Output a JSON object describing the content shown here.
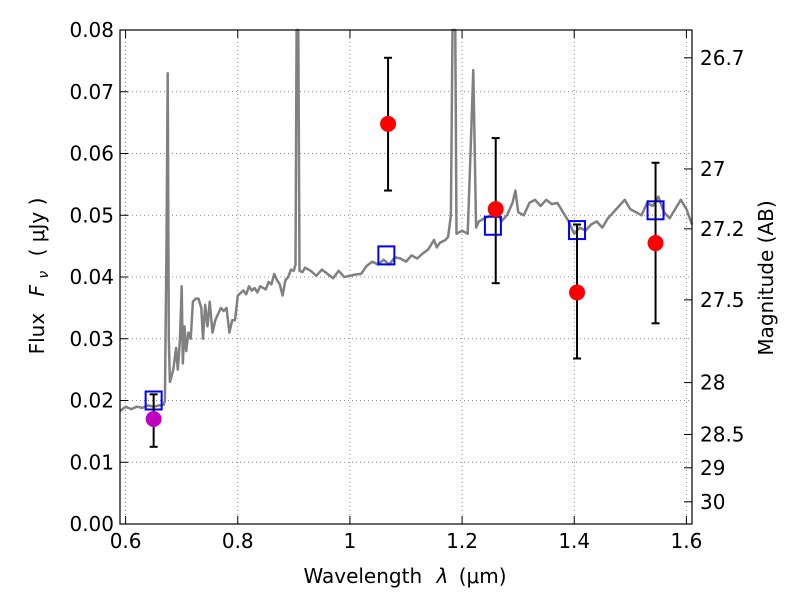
{
  "chart_data": {
    "type": "scatter",
    "title": "",
    "xlabel_text": "Wavelength",
    "xlabel_symbol": "λ",
    "xlabel_unit": "(μm)",
    "ylabel_text": "Flux",
    "ylabel_symbol": "F",
    "ylabel_sub": "ν",
    "ylabel_unit": "( μJy )",
    "y2label": "Magnitude (AB)",
    "xlim": [
      0.59,
      1.61
    ],
    "ylim": [
      0.0,
      0.08
    ],
    "grid": true,
    "x_ticks": [
      0.6,
      0.8,
      1.0,
      1.2,
      1.4,
      1.6
    ],
    "x_tick_labels": [
      "0.6",
      "0.8",
      "1",
      "1.2",
      "1.4",
      "1.6"
    ],
    "y_ticks": [
      0.0,
      0.01,
      0.02,
      0.03,
      0.04,
      0.05,
      0.06,
      0.07,
      0.08
    ],
    "y_tick_labels": [
      "0.00",
      "0.01",
      "0.02",
      "0.03",
      "0.04",
      "0.05",
      "0.06",
      "0.07",
      "0.08"
    ],
    "y2_ticks": [
      {
        "label": "26.7",
        "flux": 0.0755
      },
      {
        "label": "27",
        "flux": 0.0575
      },
      {
        "label": "27.2",
        "flux": 0.0478
      },
      {
        "label": "27.5",
        "flux": 0.0363
      },
      {
        "label": "28",
        "flux": 0.0229
      },
      {
        "label": "28.5",
        "flux": 0.0145
      },
      {
        "label": "29",
        "flux": 0.0091
      },
      {
        "label": "30",
        "flux": 0.0036
      }
    ],
    "series": [
      {
        "kind": "template_spectrum",
        "color": "#808080",
        "points": [
          [
            0.59,
            0.0183
          ],
          [
            0.6,
            0.019
          ],
          [
            0.61,
            0.0186
          ],
          [
            0.62,
            0.019
          ],
          [
            0.63,
            0.0188
          ],
          [
            0.64,
            0.0192
          ],
          [
            0.65,
            0.019
          ],
          [
            0.66,
            0.0192
          ],
          [
            0.668,
            0.0193
          ],
          [
            0.67,
            0.02
          ],
          [
            0.673,
            0.045
          ],
          [
            0.675,
            0.073
          ],
          [
            0.677,
            0.03
          ],
          [
            0.679,
            0.023
          ],
          [
            0.685,
            0.025
          ],
          [
            0.69,
            0.0285
          ],
          [
            0.693,
            0.025
          ],
          [
            0.697,
            0.03
          ],
          [
            0.7,
            0.0385
          ],
          [
            0.702,
            0.026
          ],
          [
            0.705,
            0.032
          ],
          [
            0.708,
            0.028
          ],
          [
            0.712,
            0.031
          ],
          [
            0.716,
            0.03
          ],
          [
            0.72,
            0.036
          ],
          [
            0.725,
            0.0365
          ],
          [
            0.73,
            0.0365
          ],
          [
            0.735,
            0.035
          ],
          [
            0.738,
            0.03
          ],
          [
            0.742,
            0.0355
          ],
          [
            0.746,
            0.032
          ],
          [
            0.75,
            0.036
          ],
          [
            0.755,
            0.031
          ],
          [
            0.76,
            0.033
          ],
          [
            0.765,
            0.034
          ],
          [
            0.77,
            0.035
          ],
          [
            0.775,
            0.0345
          ],
          [
            0.78,
            0.035
          ],
          [
            0.785,
            0.031
          ],
          [
            0.79,
            0.033
          ],
          [
            0.795,
            0.033
          ],
          [
            0.8,
            0.037
          ],
          [
            0.81,
            0.0378
          ],
          [
            0.815,
            0.0372
          ],
          [
            0.82,
            0.0385
          ],
          [
            0.825,
            0.0378
          ],
          [
            0.83,
            0.0382
          ],
          [
            0.835,
            0.0375
          ],
          [
            0.84,
            0.0385
          ],
          [
            0.85,
            0.038
          ],
          [
            0.855,
            0.0392
          ],
          [
            0.86,
            0.0388
          ],
          [
            0.865,
            0.0405
          ],
          [
            0.87,
            0.0395
          ],
          [
            0.875,
            0.0388
          ],
          [
            0.88,
            0.037
          ],
          [
            0.885,
            0.0395
          ],
          [
            0.89,
            0.04
          ],
          [
            0.895,
            0.0412
          ],
          [
            0.9,
            0.041
          ],
          [
            0.903,
            0.042
          ],
          [
            0.905,
            0.08
          ],
          [
            0.908,
            0.08
          ],
          [
            0.91,
            0.041
          ],
          [
            0.915,
            0.0408
          ],
          [
            0.92,
            0.0415
          ],
          [
            0.93,
            0.041
          ],
          [
            0.94,
            0.0402
          ],
          [
            0.95,
            0.0412
          ],
          [
            0.96,
            0.0405
          ],
          [
            0.97,
            0.0398
          ],
          [
            0.98,
            0.041
          ],
          [
            0.99,
            0.04
          ],
          [
            1.0,
            0.0402
          ],
          [
            1.01,
            0.0404
          ],
          [
            1.02,
            0.0405
          ],
          [
            1.03,
            0.0418
          ],
          [
            1.04,
            0.0425
          ],
          [
            1.05,
            0.042
          ],
          [
            1.06,
            0.0428
          ],
          [
            1.07,
            0.042
          ],
          [
            1.08,
            0.0432
          ],
          [
            1.09,
            0.043
          ],
          [
            1.1,
            0.0425
          ],
          [
            1.11,
            0.0435
          ],
          [
            1.12,
            0.043
          ],
          [
            1.13,
            0.0438
          ],
          [
            1.14,
            0.0445
          ],
          [
            1.15,
            0.046
          ],
          [
            1.155,
            0.0448
          ],
          [
            1.16,
            0.0455
          ],
          [
            1.17,
            0.046
          ],
          [
            1.175,
            0.0465
          ],
          [
            1.18,
            0.05
          ],
          [
            1.183,
            0.08
          ],
          [
            1.188,
            0.08
          ],
          [
            1.19,
            0.047
          ],
          [
            1.2,
            0.0475
          ],
          [
            1.21,
            0.047
          ],
          [
            1.215,
            0.06
          ],
          [
            1.22,
            0.0735
          ],
          [
            1.225,
            0.048
          ],
          [
            1.23,
            0.049
          ],
          [
            1.24,
            0.0495
          ],
          [
            1.25,
            0.05
          ],
          [
            1.26,
            0.051
          ],
          [
            1.27,
            0.049
          ],
          [
            1.28,
            0.05
          ],
          [
            1.29,
            0.052
          ],
          [
            1.295,
            0.054
          ],
          [
            1.3,
            0.0505
          ],
          [
            1.31,
            0.05
          ],
          [
            1.32,
            0.052
          ],
          [
            1.33,
            0.0525
          ],
          [
            1.34,
            0.0515
          ],
          [
            1.35,
            0.0525
          ],
          [
            1.36,
            0.0518
          ],
          [
            1.37,
            0.052
          ],
          [
            1.38,
            0.0505
          ],
          [
            1.39,
            0.049
          ],
          [
            1.4,
            0.047
          ],
          [
            1.41,
            0.048
          ],
          [
            1.42,
            0.0475
          ],
          [
            1.43,
            0.0485
          ],
          [
            1.44,
            0.049
          ],
          [
            1.45,
            0.048
          ],
          [
            1.46,
            0.0495
          ],
          [
            1.47,
            0.0505
          ],
          [
            1.48,
            0.0515
          ],
          [
            1.49,
            0.0525
          ],
          [
            1.5,
            0.051
          ],
          [
            1.51,
            0.0505
          ],
          [
            1.52,
            0.05
          ],
          [
            1.53,
            0.052
          ],
          [
            1.54,
            0.0515
          ],
          [
            1.55,
            0.053
          ],
          [
            1.56,
            0.0505
          ],
          [
            1.57,
            0.0495
          ],
          [
            1.58,
            0.051
          ],
          [
            1.59,
            0.0525
          ],
          [
            1.6,
            0.051
          ],
          [
            1.61,
            0.0485
          ]
        ]
      },
      {
        "kind": "model_boxes",
        "color": "#0000ff",
        "points": [
          [
            0.65,
            0.02
          ],
          [
            1.065,
            0.0435
          ],
          [
            1.255,
            0.0483
          ],
          [
            1.405,
            0.0476
          ],
          [
            1.545,
            0.0508
          ]
        ]
      },
      {
        "kind": "observed",
        "color": "#ff0000",
        "points": [
          {
            "x": 1.068,
            "y": 0.0648,
            "err_lo": 0.054,
            "err_hi": 0.0755
          },
          {
            "x": 1.26,
            "y": 0.051,
            "err_lo": 0.039,
            "err_hi": 0.0625
          },
          {
            "x": 1.405,
            "y": 0.0375,
            "err_lo": 0.0268,
            "err_hi": 0.0485
          },
          {
            "x": 1.545,
            "y": 0.0455,
            "err_lo": 0.0325,
            "err_hi": 0.0585
          }
        ]
      },
      {
        "kind": "observed_special",
        "color": "#c000c0",
        "points": [
          {
            "x": 0.65,
            "y": 0.017,
            "err_lo": 0.0125,
            "err_hi": 0.021
          }
        ]
      }
    ]
  }
}
